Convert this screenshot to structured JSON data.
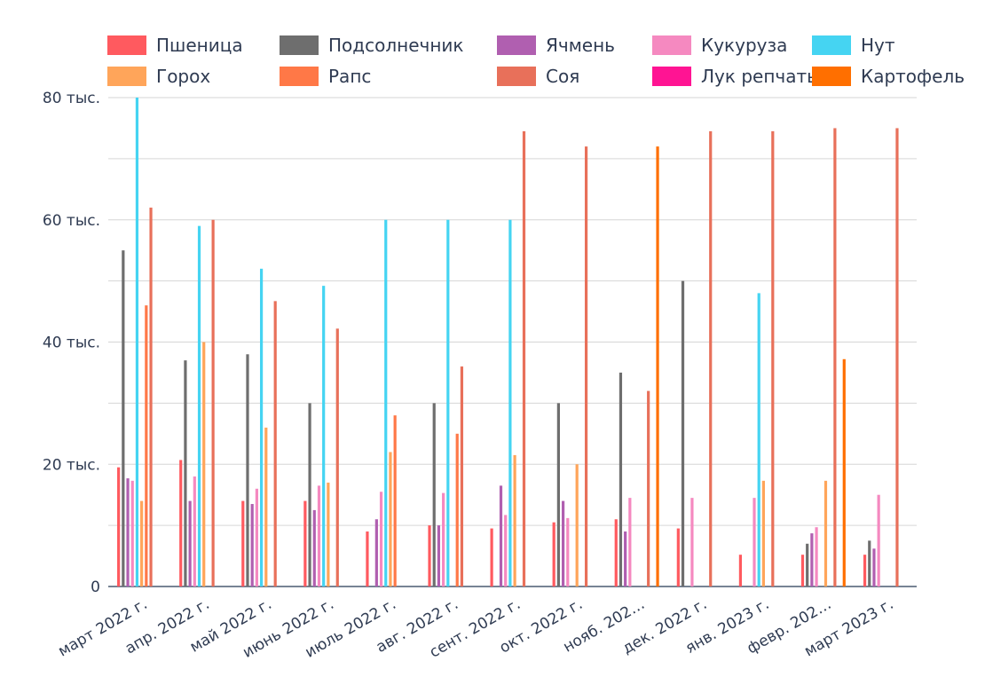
{
  "chart_data": {
    "type": "bar",
    "title": "",
    "xlabel": "",
    "ylabel": "",
    "ylim": [
      0,
      80000
    ],
    "grid": true,
    "legend_position": "top",
    "y_ticks": [
      {
        "value": 0,
        "label": "0"
      },
      {
        "value": 20000,
        "label": "20 тыс."
      },
      {
        "value": 40000,
        "label": "40 тыс."
      },
      {
        "value": 60000,
        "label": "60 тыс."
      },
      {
        "value": 80000,
        "label": "80 тыс."
      }
    ],
    "categories": [
      "март 2022 г.",
      "апр. 2022 г.",
      "май 2022 г.",
      "июнь 2022 г.",
      "июль 2022 г.",
      "авг. 2022 г.",
      "сент. 2022 г.",
      "окт. 2022 г.",
      "нояб. 202…",
      "дек. 2022 г.",
      "янв. 2023 г.",
      "февр. 202…",
      "март 2023 г."
    ],
    "series": [
      {
        "name": "Пшеница",
        "color": "#ff5a5f",
        "values": [
          19500,
          20700,
          14000,
          14000,
          9000,
          10000,
          9500,
          10500,
          11000,
          9500,
          5200,
          5200,
          5200
        ]
      },
      {
        "name": "Подсолнечник",
        "color": "#6e6e6e",
        "values": [
          55000,
          37000,
          38000,
          30000,
          null,
          30000,
          null,
          30000,
          35000,
          50000,
          null,
          7000,
          7500
        ]
      },
      {
        "name": "Ячмень",
        "color": "#b05fb0",
        "values": [
          17700,
          14000,
          13500,
          12500,
          11000,
          10000,
          16500,
          14000,
          9000,
          null,
          null,
          8700,
          6200
        ]
      },
      {
        "name": "Кукуруза",
        "color": "#f589c0",
        "values": [
          17300,
          18000,
          16000,
          16500,
          15500,
          15300,
          11700,
          11200,
          14500,
          14500,
          14500,
          9700,
          15000
        ]
      },
      {
        "name": "Нут",
        "color": "#45d4f2",
        "values": [
          80000,
          59000,
          52000,
          49200,
          60000,
          60000,
          60000,
          null,
          null,
          null,
          48000,
          null,
          null
        ]
      },
      {
        "name": "Горох",
        "color": "#ffa55a",
        "values": [
          14000,
          40000,
          26000,
          17000,
          22000,
          null,
          21500,
          20000,
          null,
          null,
          17300,
          17300,
          null
        ]
      },
      {
        "name": "Рапс",
        "color": "#ff7847",
        "values": [
          46000,
          null,
          null,
          null,
          28000,
          25000,
          null,
          null,
          null,
          null,
          null,
          null,
          null
        ]
      },
      {
        "name": "Соя",
        "color": "#e8705a",
        "values": [
          62000,
          60000,
          46700,
          42200,
          null,
          36000,
          74500,
          72000,
          32000,
          74500,
          74500,
          75000,
          75000
        ]
      },
      {
        "name": "Лук репчатый",
        "color": "#ff1493",
        "values": [
          null,
          null,
          null,
          null,
          null,
          null,
          null,
          null,
          null,
          null,
          null,
          null,
          null
        ]
      },
      {
        "name": "Картофель",
        "color": "#ff6f00",
        "values": [
          null,
          null,
          null,
          null,
          null,
          null,
          null,
          null,
          72000,
          null,
          null,
          37200,
          null
        ]
      }
    ]
  }
}
